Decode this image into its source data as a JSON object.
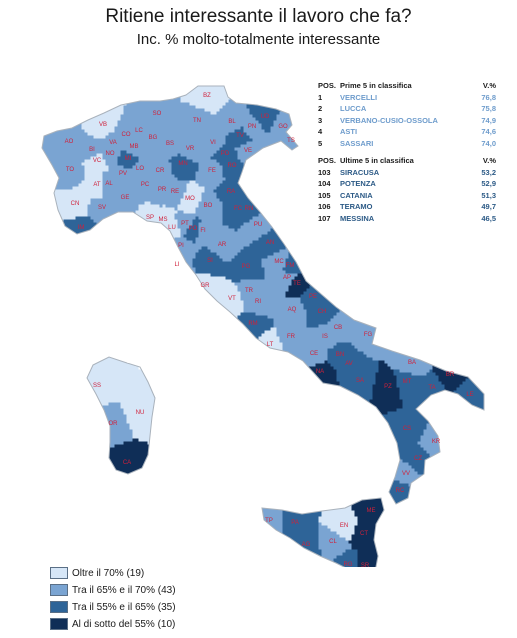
{
  "title": "Ritiene interessante il lavoro che fa?",
  "subtitle": "Inc. % molto-totalmente interessante",
  "colors": {
    "class1": "#d6e6f7",
    "class2": "#7aa4d2",
    "class3": "#2e6498",
    "class4": "#0f2e57",
    "province_label": "#d0203a",
    "region_border": "#a9b2bc"
  },
  "top5": {
    "header": {
      "pos": "POS.",
      "name": "Prime 5 in classifica",
      "value": "V.%"
    },
    "rows": [
      {
        "pos": "1",
        "name": "VERCELLI",
        "value": "76,8"
      },
      {
        "pos": "2",
        "name": "LUCCA",
        "value": "75,8"
      },
      {
        "pos": "3",
        "name": "VERBANO-CUSIO-OSSOLA",
        "value": "74,9"
      },
      {
        "pos": "4",
        "name": "ASTI",
        "value": "74,6"
      },
      {
        "pos": "5",
        "name": "SASSARI",
        "value": "74,0"
      }
    ]
  },
  "bottom5": {
    "header": {
      "pos": "POS.",
      "name": "Ultime 5 in classifica",
      "value": "V.%"
    },
    "rows": [
      {
        "pos": "103",
        "name": "SIRACUSA",
        "value": "53,2"
      },
      {
        "pos": "104",
        "name": "POTENZA",
        "value": "52,9"
      },
      {
        "pos": "105",
        "name": "CATANIA",
        "value": "51,3"
      },
      {
        "pos": "106",
        "name": "TERAMO",
        "value": "49,7"
      },
      {
        "pos": "107",
        "name": "MESSINA",
        "value": "46,5"
      }
    ]
  },
  "legend": [
    {
      "label": "Oltre il 70% (19)",
      "color": "#d6e6f7"
    },
    {
      "label": "Tra il 65% e il 70% (43)",
      "color": "#7aa4d2"
    },
    {
      "label": "Tra il 55% e il 65% (35)",
      "color": "#2e6498"
    },
    {
      "label": "Al di sotto del 55% (10)",
      "color": "#0f2e57"
    }
  ],
  "provinces": [
    {
      "code": "BZ",
      "class": 1
    },
    {
      "code": "TN",
      "class": 2
    },
    {
      "code": "BL",
      "class": 2
    },
    {
      "code": "UD",
      "class": 3
    },
    {
      "code": "PN",
      "class": 2
    },
    {
      "code": "TV",
      "class": 3
    },
    {
      "code": "GO",
      "class": 2
    },
    {
      "code": "TS",
      "class": 2
    },
    {
      "code": "VI",
      "class": 2
    },
    {
      "code": "VR",
      "class": 2
    },
    {
      "code": "PD",
      "class": 3
    },
    {
      "code": "VE",
      "class": 2
    },
    {
      "code": "RO",
      "class": 3
    },
    {
      "code": "SO",
      "class": 2
    },
    {
      "code": "VB",
      "class": 1
    },
    {
      "code": "BS",
      "class": 2
    },
    {
      "code": "BG",
      "class": 2
    },
    {
      "code": "CO",
      "class": 2
    },
    {
      "code": "VA",
      "class": 2
    },
    {
      "code": "LC",
      "class": 2
    },
    {
      "code": "MB",
      "class": 2
    },
    {
      "code": "MI",
      "class": 3
    },
    {
      "code": "BI",
      "class": 2
    },
    {
      "code": "NO",
      "class": 2
    },
    {
      "code": "VC",
      "class": 1
    },
    {
      "code": "AO",
      "class": 2
    },
    {
      "code": "TO",
      "class": 2
    },
    {
      "code": "LO",
      "class": 2
    },
    {
      "code": "CR",
      "class": 2
    },
    {
      "code": "MN",
      "class": 3
    },
    {
      "code": "PV",
      "class": 2
    },
    {
      "code": "PC",
      "class": 2
    },
    {
      "code": "AL",
      "class": 2
    },
    {
      "code": "AT",
      "class": 1
    },
    {
      "code": "CN",
      "class": 1
    },
    {
      "code": "GE",
      "class": 2
    },
    {
      "code": "SV",
      "class": 2
    },
    {
      "code": "IM",
      "class": 3
    },
    {
      "code": "SP",
      "class": 1
    },
    {
      "code": "MS",
      "class": 1
    },
    {
      "code": "PR",
      "class": 2
    },
    {
      "code": "RE",
      "class": 2
    },
    {
      "code": "MO",
      "class": 1
    },
    {
      "code": "FE",
      "class": 2
    },
    {
      "code": "BO",
      "class": 2
    },
    {
      "code": "RA",
      "class": 3
    },
    {
      "code": "FC",
      "class": 3
    },
    {
      "code": "RN",
      "class": 3
    },
    {
      "code": "LU",
      "class": 1
    },
    {
      "code": "PT",
      "class": 2
    },
    {
      "code": "PO",
      "class": 3
    },
    {
      "code": "FI",
      "class": 2
    },
    {
      "code": "AR",
      "class": 2
    },
    {
      "code": "PI",
      "class": 2
    },
    {
      "code": "LI",
      "class": 2
    },
    {
      "code": "SI",
      "class": 3
    },
    {
      "code": "GR",
      "class": 1
    },
    {
      "code": "PU",
      "class": 2
    },
    {
      "code": "AN",
      "class": 3
    },
    {
      "code": "MC",
      "class": 2
    },
    {
      "code": "FM",
      "class": 3
    },
    {
      "code": "AP",
      "class": 2
    },
    {
      "code": "PG",
      "class": 3
    },
    {
      "code": "TR",
      "class": 2
    },
    {
      "code": "VT",
      "class": 1
    },
    {
      "code": "RI",
      "class": 2
    },
    {
      "code": "RM",
      "class": 3
    },
    {
      "code": "LT",
      "class": 1
    },
    {
      "code": "FR",
      "class": 2
    },
    {
      "code": "TE",
      "class": 4
    },
    {
      "code": "PE",
      "class": 3
    },
    {
      "code": "AQ",
      "class": 2
    },
    {
      "code": "CH",
      "class": 3
    },
    {
      "code": "CB",
      "class": 2
    },
    {
      "code": "IS",
      "class": 2
    },
    {
      "code": "FG",
      "class": 2
    },
    {
      "code": "CE",
      "class": 2
    },
    {
      "code": "BN",
      "class": 3
    },
    {
      "code": "NA",
      "class": 4
    },
    {
      "code": "AV",
      "class": 3
    },
    {
      "code": "SA",
      "class": 3
    },
    {
      "code": "BA",
      "class": 2
    },
    {
      "code": "BR",
      "class": 4
    },
    {
      "code": "TA",
      "class": 3
    },
    {
      "code": "LE",
      "class": 3
    },
    {
      "code": "PZ",
      "class": 4
    },
    {
      "code": "MT",
      "class": 3
    },
    {
      "code": "CS",
      "class": 3
    },
    {
      "code": "KR",
      "class": 2
    },
    {
      "code": "CZ",
      "class": 3
    },
    {
      "code": "VV",
      "class": 2
    },
    {
      "code": "RC",
      "class": 3
    },
    {
      "code": "SS",
      "class": 1
    },
    {
      "code": "NU",
      "class": 1
    },
    {
      "code": "OR",
      "class": 2
    },
    {
      "code": "CA",
      "class": 4
    },
    {
      "code": "TP",
      "class": 2
    },
    {
      "code": "PA",
      "class": 3
    },
    {
      "code": "AG",
      "class": 3
    },
    {
      "code": "CL",
      "class": 2
    },
    {
      "code": "EN",
      "class": 1
    },
    {
      "code": "ME",
      "class": 4
    },
    {
      "code": "CT",
      "class": 4
    },
    {
      "code": "SR",
      "class": 4
    },
    {
      "code": "RG",
      "class": 3
    }
  ]
}
